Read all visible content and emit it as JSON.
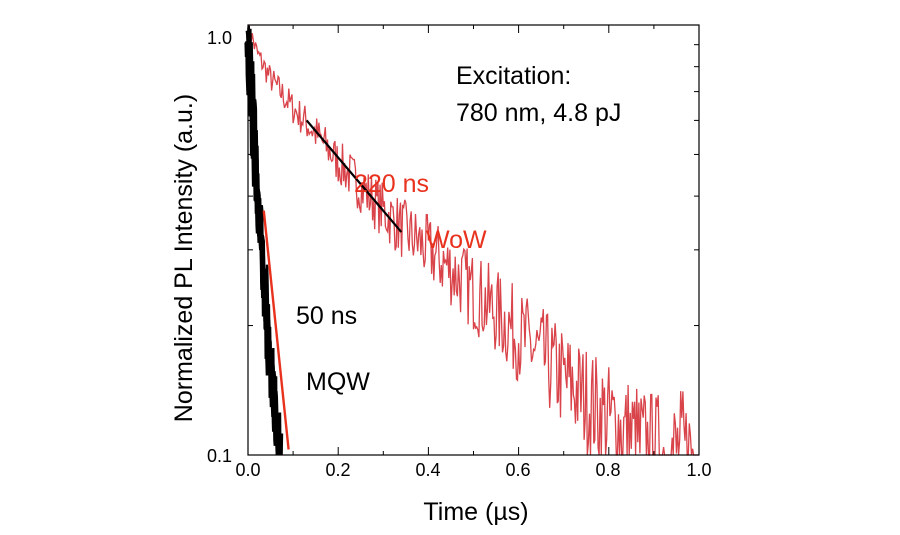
{
  "chart_data": {
    "type": "line",
    "xlabel": "Time (µs)",
    "ylabel": "Normalized PL Intensity (a.u.)",
    "xlim": [
      0.0,
      1.0
    ],
    "ylim": [
      0.1,
      1.0
    ],
    "y_scale": "log",
    "x_tick_labels": [
      "0.0",
      "0.2",
      "0.4",
      "0.6",
      "0.8",
      "1.0"
    ],
    "y_tick_labels": [
      "1.0",
      "0.1"
    ],
    "colors": {
      "wow": "#d9434a",
      "mqw": "#000000",
      "mqw_fit": "#e8321e",
      "wow_fit": "#000000"
    },
    "series": [
      {
        "name": "WoW",
        "x": [
          0.0,
          0.02,
          0.05,
          0.1,
          0.15,
          0.2,
          0.25,
          0.3,
          0.35,
          0.4,
          0.45,
          0.5,
          0.55,
          0.6,
          0.65,
          0.7,
          0.75,
          0.8,
          0.85,
          0.9,
          0.95,
          1.0
        ],
        "values": [
          1.0,
          0.86,
          0.75,
          0.64,
          0.56,
          0.48,
          0.42,
          0.37,
          0.33,
          0.3,
          0.27,
          0.24,
          0.215,
          0.19,
          0.17,
          0.15,
          0.135,
          0.12,
          0.11,
          0.1,
          0.1,
          0.1
        ]
      },
      {
        "name": "MQW",
        "x": [
          0.0,
          0.01,
          0.02,
          0.03,
          0.04,
          0.05,
          0.06,
          0.07
        ],
        "values": [
          0.95,
          0.62,
          0.42,
          0.3,
          0.22,
          0.16,
          0.125,
          0.1
        ]
      }
    ],
    "fits": [
      {
        "label": "220 ns",
        "x": [
          0.13,
          0.34
        ],
        "values": [
          0.6,
          0.33
        ]
      },
      {
        "label": "50 ns",
        "x": [
          0.035,
          0.09
        ],
        "values": [
          0.37,
          0.103
        ]
      }
    ],
    "annotations": {
      "excitation_line1": "Excitation:",
      "excitation_line2": "780 nm, 4.8 pJ",
      "wow_time": "220 ns",
      "wow_label": "WoW",
      "mqw_time": "50 ns",
      "mqw_label": "MQW"
    }
  }
}
